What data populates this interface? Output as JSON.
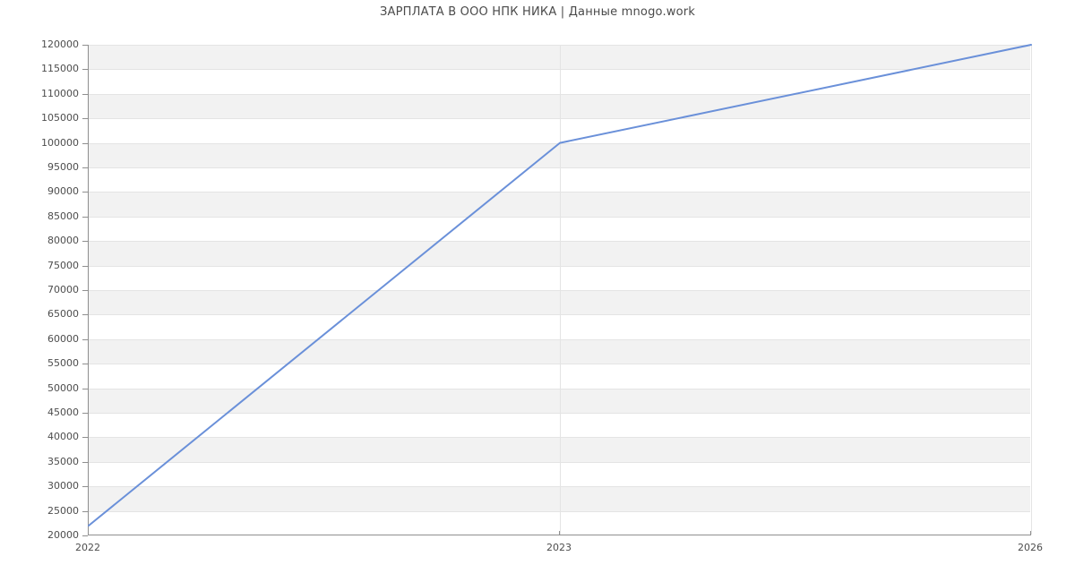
{
  "chart_data": {
    "type": "line",
    "title": "ЗАРПЛАТА В ООО НПК НИКА | Данные mnogo.work",
    "categories": [
      "2022",
      "2023",
      "2026"
    ],
    "series": [
      {
        "name": "salary",
        "values": [
          22000,
          100000,
          120000
        ]
      }
    ],
    "xlabel": "",
    "ylabel": "",
    "ylim": [
      20000,
      120000
    ],
    "ytick_step": 5000,
    "yticks": [
      20000,
      25000,
      30000,
      35000,
      40000,
      45000,
      50000,
      55000,
      60000,
      65000,
      70000,
      75000,
      80000,
      85000,
      90000,
      95000,
      100000,
      105000,
      110000,
      115000,
      120000
    ],
    "legend": "none",
    "grid": "horizontal gridlines every 5000 with alternating shaded bands (top band shaded); vertical gridlines at each category",
    "colors": {
      "line": "#6a90d9",
      "band_fill": "#f2f2f2",
      "gridline": "#e4e4e4",
      "axis": "#8f8f8f",
      "tick_label": "#4d4d4d",
      "title": "#4a4a4a",
      "background": "#ffffff"
    }
  }
}
